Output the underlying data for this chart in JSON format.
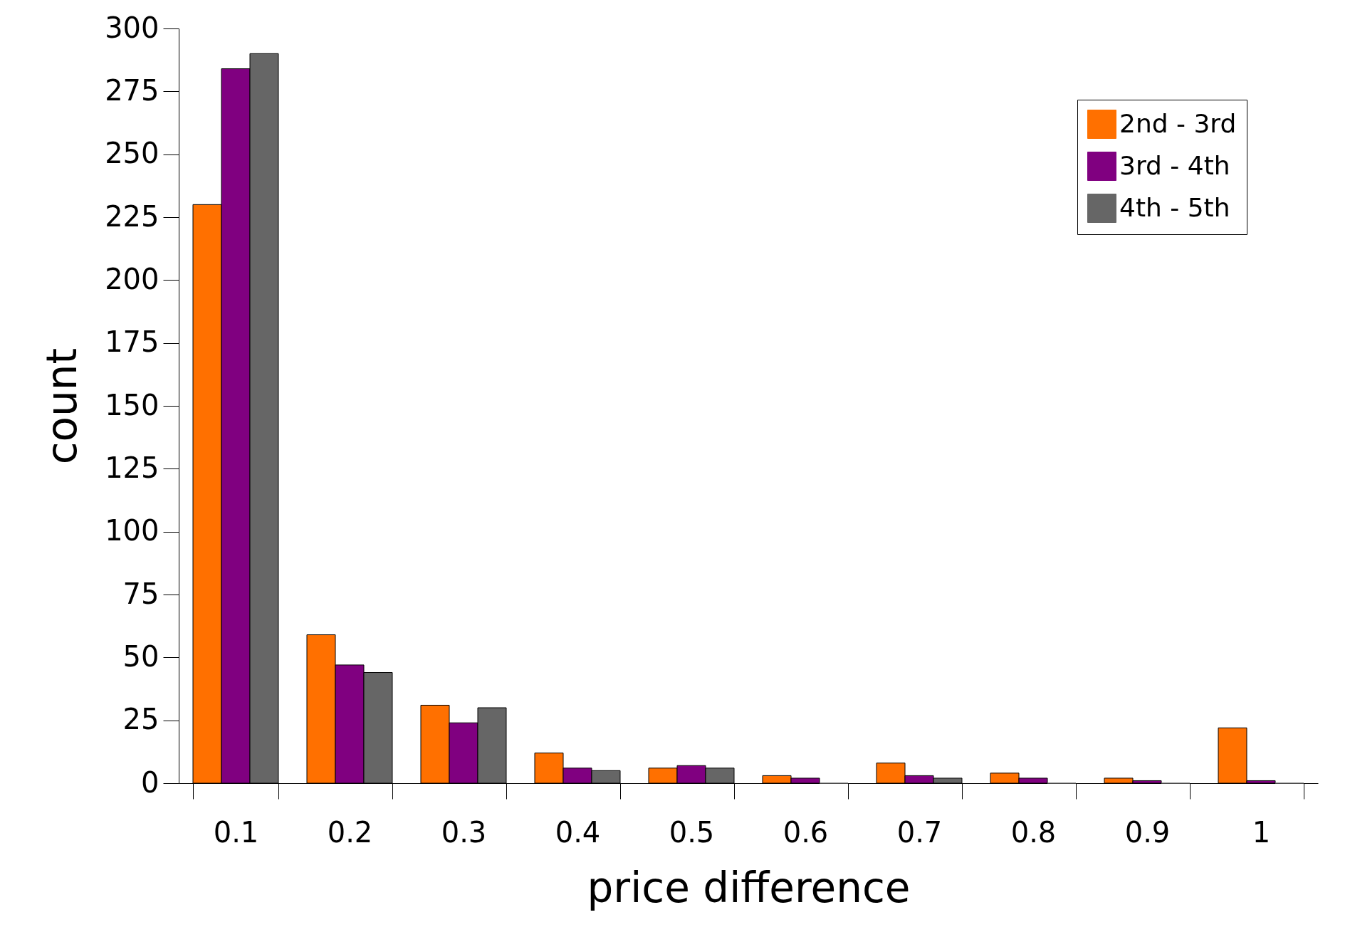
{
  "chart_data": {
    "type": "bar",
    "xlabel": "price difference",
    "ylabel": "count",
    "categories": [
      "0.1",
      "0.2",
      "0.3",
      "0.4",
      "0.5",
      "0.6",
      "0.7",
      "0.8",
      "0.9",
      "1"
    ],
    "series": [
      {
        "name": "2nd - 3rd",
        "color": "#ff7000",
        "values": [
          230,
          59,
          31,
          12,
          6,
          3,
          8,
          4,
          2,
          22
        ]
      },
      {
        "name": "3rd - 4th",
        "color": "#800080",
        "values": [
          284,
          47,
          24,
          6,
          7,
          2,
          3,
          2,
          1,
          1
        ]
      },
      {
        "name": "4th - 5th",
        "color": "#666666",
        "values": [
          290,
          44,
          30,
          5,
          6,
          0,
          2,
          0,
          0,
          0
        ]
      }
    ],
    "ylim": [
      0,
      300
    ],
    "yticks": [
      0,
      25,
      50,
      75,
      100,
      125,
      150,
      175,
      200,
      225,
      250,
      275,
      300
    ],
    "grid": false,
    "legend": "top right"
  }
}
